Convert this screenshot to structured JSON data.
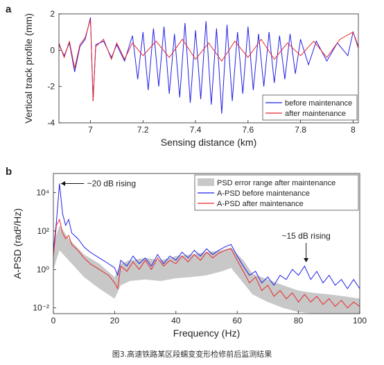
{
  "caption": "图3.高速铁路某区段蠕变变形检修前后监测结果",
  "chart_data": [
    {
      "panel": "a",
      "type": "line",
      "xlabel": "Sensing distance (km)",
      "ylabel": "Vertical track profile (mm)",
      "xlim": [
        6.88,
        8.02
      ],
      "ylim": [
        -4,
        2
      ],
      "xticks": [
        "7",
        "7.2",
        "7.4",
        "7.6",
        "7.8",
        "8"
      ],
      "yticks": [
        "-4",
        "-2",
        "0",
        "2"
      ],
      "legend_position": "bottom-right",
      "series": [
        {
          "name": "before maintenance",
          "color": "#1f1fe6",
          "points": [
            [
              6.88,
              0.3
            ],
            [
              6.9,
              -0.3
            ],
            [
              6.92,
              0.4
            ],
            [
              6.94,
              -1.2
            ],
            [
              6.96,
              0.2
            ],
            [
              6.98,
              0.6
            ],
            [
              7.0,
              1.8
            ],
            [
              7.01,
              -2.8
            ],
            [
              7.02,
              0.3
            ],
            [
              7.05,
              0.5
            ],
            [
              7.08,
              -0.4
            ],
            [
              7.1,
              0.3
            ],
            [
              7.13,
              -0.6
            ],
            [
              7.16,
              0.8
            ],
            [
              7.18,
              -1.6
            ],
            [
              7.2,
              1.0
            ],
            [
              7.22,
              -2.2
            ],
            [
              7.24,
              1.2
            ],
            [
              7.26,
              -2.0
            ],
            [
              7.28,
              1.3
            ],
            [
              7.3,
              -2.4
            ],
            [
              7.32,
              0.9
            ],
            [
              7.34,
              -2.6
            ],
            [
              7.36,
              1.5
            ],
            [
              7.38,
              -2.9
            ],
            [
              7.4,
              1.1
            ],
            [
              7.42,
              -2.7
            ],
            [
              7.44,
              1.6
            ],
            [
              7.46,
              -3.0
            ],
            [
              7.48,
              1.2
            ],
            [
              7.5,
              -3.5
            ],
            [
              7.52,
              1.4
            ],
            [
              7.54,
              -2.8
            ],
            [
              7.56,
              1.0
            ],
            [
              7.58,
              -2.4
            ],
            [
              7.6,
              1.3
            ],
            [
              7.62,
              -2.2
            ],
            [
              7.64,
              0.9
            ],
            [
              7.66,
              -2.0
            ],
            [
              7.68,
              1.0
            ],
            [
              7.7,
              -1.8
            ],
            [
              7.72,
              0.8
            ],
            [
              7.74,
              -1.6
            ],
            [
              7.76,
              0.9
            ],
            [
              7.78,
              -1.3
            ],
            [
              7.8,
              0.6
            ],
            [
              7.83,
              -0.8
            ],
            [
              7.86,
              0.5
            ],
            [
              7.9,
              -0.6
            ],
            [
              7.94,
              0.4
            ],
            [
              7.98,
              -0.3
            ],
            [
              8.0,
              1.0
            ],
            [
              8.02,
              0.2
            ]
          ]
        },
        {
          "name": "after maintenance",
          "color": "#e8262a",
          "points": [
            [
              6.88,
              0.4
            ],
            [
              6.9,
              -0.4
            ],
            [
              6.92,
              0.5
            ],
            [
              6.94,
              -1.0
            ],
            [
              6.96,
              0.3
            ],
            [
              6.98,
              0.7
            ],
            [
              7.0,
              1.7
            ],
            [
              7.01,
              -2.8
            ],
            [
              7.02,
              0.2
            ],
            [
              7.05,
              0.6
            ],
            [
              7.08,
              -0.5
            ],
            [
              7.1,
              0.4
            ],
            [
              7.13,
              -0.5
            ],
            [
              7.16,
              0.4
            ],
            [
              7.2,
              -0.3
            ],
            [
              7.25,
              0.5
            ],
            [
              7.3,
              -0.4
            ],
            [
              7.35,
              0.6
            ],
            [
              7.4,
              -0.5
            ],
            [
              7.45,
              0.4
            ],
            [
              7.5,
              -0.6
            ],
            [
              7.55,
              0.5
            ],
            [
              7.6,
              -0.4
            ],
            [
              7.65,
              0.6
            ],
            [
              7.7,
              -0.5
            ],
            [
              7.75,
              0.4
            ],
            [
              7.8,
              -0.3
            ],
            [
              7.85,
              0.5
            ],
            [
              7.9,
              -0.4
            ],
            [
              7.95,
              0.6
            ],
            [
              8.0,
              1.0
            ],
            [
              8.02,
              0.1
            ]
          ]
        }
      ]
    },
    {
      "panel": "b",
      "type": "line",
      "xlabel": "Frequency (Hz)",
      "ylabel": "A-PSD (rad²/Hz)",
      "yscale": "log",
      "xlim": [
        0,
        100
      ],
      "ylim": [
        0.005,
        100000
      ],
      "xticks": [
        "0",
        "20",
        "40",
        "60",
        "80",
        "100"
      ],
      "yticks": [
        "10⁻²",
        "10⁰",
        "10²",
        "10⁴"
      ],
      "legend_position": "top-right",
      "annotations": [
        "~20 dB rising",
        "~15 dB rising"
      ],
      "band": {
        "name": "PSD error range after maintenance",
        "color": "#c8c8c8",
        "upper": [
          [
            0,
            20
          ],
          [
            2,
            200
          ],
          [
            5,
            40
          ],
          [
            10,
            6
          ],
          [
            15,
            2
          ],
          [
            20,
            0.4
          ],
          [
            22,
            2
          ],
          [
            25,
            3
          ],
          [
            30,
            4
          ],
          [
            35,
            3
          ],
          [
            40,
            5
          ],
          [
            45,
            6
          ],
          [
            50,
            8
          ],
          [
            55,
            10
          ],
          [
            58,
            14
          ],
          [
            62,
            3
          ],
          [
            65,
            0.6
          ],
          [
            70,
            0.3
          ],
          [
            75,
            0.15
          ],
          [
            80,
            0.08
          ],
          [
            85,
            0.06
          ],
          [
            90,
            0.05
          ],
          [
            95,
            0.04
          ],
          [
            100,
            0.03
          ]
        ],
        "lower": [
          [
            0,
            1
          ],
          [
            2,
            10
          ],
          [
            5,
            3
          ],
          [
            10,
            0.4
          ],
          [
            15,
            0.1
          ],
          [
            20,
            0.03
          ],
          [
            22,
            0.15
          ],
          [
            25,
            0.25
          ],
          [
            30,
            0.3
          ],
          [
            35,
            0.25
          ],
          [
            40,
            0.35
          ],
          [
            45,
            0.4
          ],
          [
            50,
            0.5
          ],
          [
            55,
            0.8
          ],
          [
            58,
            1.2
          ],
          [
            62,
            0.2
          ],
          [
            65,
            0.05
          ],
          [
            70,
            0.02
          ],
          [
            75,
            0.01
          ],
          [
            80,
            0.006
          ],
          [
            85,
            0.005
          ],
          [
            90,
            0.005
          ],
          [
            95,
            0.005
          ],
          [
            100,
            0.005
          ]
        ]
      },
      "series": [
        {
          "name": "A-PSD before maintenance",
          "color": "#1f1fe6",
          "points": [
            [
              0,
              10
            ],
            [
              1,
              300
            ],
            [
              2,
              30000
            ],
            [
              3,
              800
            ],
            [
              4,
              200
            ],
            [
              5,
              400
            ],
            [
              6,
              80
            ],
            [
              8,
              40
            ],
            [
              10,
              15
            ],
            [
              12,
              8
            ],
            [
              15,
              4
            ],
            [
              18,
              2
            ],
            [
              20,
              1.2
            ],
            [
              21,
              0.5
            ],
            [
              22,
              3
            ],
            [
              24,
              1.5
            ],
            [
              26,
              5
            ],
            [
              28,
              2
            ],
            [
              30,
              4
            ],
            [
              32,
              1.5
            ],
            [
              34,
              6
            ],
            [
              36,
              2
            ],
            [
              38,
              5
            ],
            [
              40,
              3
            ],
            [
              42,
              8
            ],
            [
              44,
              4
            ],
            [
              46,
              10
            ],
            [
              48,
              5
            ],
            [
              50,
              12
            ],
            [
              52,
              6
            ],
            [
              54,
              10
            ],
            [
              56,
              15
            ],
            [
              58,
              20
            ],
            [
              60,
              5
            ],
            [
              62,
              1.5
            ],
            [
              64,
              0.5
            ],
            [
              66,
              0.8
            ],
            [
              68,
              0.2
            ],
            [
              70,
              0.4
            ],
            [
              72,
              0.15
            ],
            [
              74,
              0.5
            ],
            [
              76,
              0.3
            ],
            [
              78,
              1.0
            ],
            [
              80,
              0.5
            ],
            [
              82,
              1.5
            ],
            [
              84,
              0.3
            ],
            [
              86,
              0.8
            ],
            [
              88,
              0.2
            ],
            [
              90,
              0.5
            ],
            [
              92,
              0.15
            ],
            [
              94,
              0.3
            ],
            [
              96,
              0.1
            ],
            [
              98,
              0.3
            ],
            [
              100,
              0.1
            ]
          ]
        },
        {
          "name": "A-PSD after maintenance",
          "color": "#e8262a",
          "points": [
            [
              0,
              5
            ],
            [
              1,
              200
            ],
            [
              2,
              400
            ],
            [
              3,
              80
            ],
            [
              4,
              40
            ],
            [
              5,
              60
            ],
            [
              6,
              20
            ],
            [
              8,
              10
            ],
            [
              10,
              4
            ],
            [
              12,
              2
            ],
            [
              15,
              1
            ],
            [
              18,
              0.5
            ],
            [
              20,
              0.2
            ],
            [
              21,
              0.1
            ],
            [
              22,
              1.5
            ],
            [
              24,
              0.8
            ],
            [
              26,
              2.5
            ],
            [
              28,
              1.0
            ],
            [
              30,
              3
            ],
            [
              32,
              1.0
            ],
            [
              34,
              4
            ],
            [
              36,
              1.5
            ],
            [
              38,
              3
            ],
            [
              40,
              2
            ],
            [
              42,
              5
            ],
            [
              44,
              2.5
            ],
            [
              46,
              6
            ],
            [
              48,
              3
            ],
            [
              50,
              8
            ],
            [
              52,
              4
            ],
            [
              54,
              7
            ],
            [
              56,
              10
            ],
            [
              58,
              12
            ],
            [
              60,
              3
            ],
            [
              62,
              0.8
            ],
            [
              64,
              0.2
            ],
            [
              66,
              0.4
            ],
            [
              68,
              0.08
            ],
            [
              70,
              0.15
            ],
            [
              72,
              0.04
            ],
            [
              74,
              0.08
            ],
            [
              76,
              0.03
            ],
            [
              78,
              0.06
            ],
            [
              80,
              0.02
            ],
            [
              82,
              0.05
            ],
            [
              84,
              0.02
            ],
            [
              86,
              0.04
            ],
            [
              88,
              0.015
            ],
            [
              90,
              0.03
            ],
            [
              92,
              0.012
            ],
            [
              94,
              0.025
            ],
            [
              96,
              0.01
            ],
            [
              98,
              0.02
            ],
            [
              100,
              0.012
            ]
          ]
        }
      ]
    }
  ]
}
